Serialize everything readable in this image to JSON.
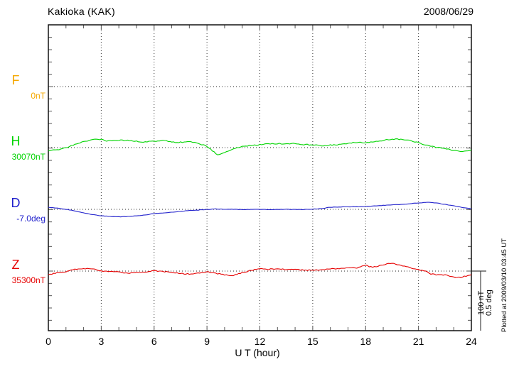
{
  "header": {
    "title": "Kakioka (KAK)",
    "date": "2008/06/29"
  },
  "axis": {
    "xlabel": "U T (hour)",
    "tick_labels": [
      "0",
      "3",
      "6",
      "9",
      "12",
      "15",
      "18",
      "21",
      "24"
    ],
    "tick_hours": [
      0,
      3,
      6,
      9,
      12,
      15,
      18,
      21,
      24
    ]
  },
  "scale_bar": {
    "nt_label": "100 nT",
    "deg_label": "0.5 deg"
  },
  "footer_note": "Plotted at 2009/03/10 03:45 UT",
  "components": [
    {
      "label": "F",
      "sublabel": "0nT",
      "color": "#f5a800"
    },
    {
      "label": "H",
      "sublabel": "30070nT",
      "color": "#00d400"
    },
    {
      "label": "D",
      "sublabel": "-7.0deg",
      "color": "#2222cc"
    },
    {
      "label": "Z",
      "sublabel": "35300nT",
      "color": "#e60000"
    }
  ],
  "chart_data": {
    "type": "line",
    "title": "Kakioka (KAK)",
    "subtitle": "2008/06/29",
    "xlabel": "U T (hour)",
    "x_range_hours": [
      0,
      24
    ],
    "x_major_tick_hours": 3,
    "x_minor_tick_hours": 1,
    "grid": "dotted vertical lines every 3 h; dotted horizontal line at each component baseline",
    "legend_position": "left margin labels",
    "scale": {
      "nT_per_division": 100,
      "deg_per_division": 0.5
    },
    "series": [
      {
        "name": "F",
        "unit": "nT",
        "baseline_value": "0nT",
        "color": "#f5a800",
        "trace_visible": false,
        "values": []
      },
      {
        "name": "H",
        "unit": "nT offset from 30070nT baseline",
        "baseline_value": "30070nT",
        "color": "#00d400",
        "trace_visible": true,
        "values": [
          [
            0,
            -5
          ],
          [
            0.5,
            -3.5
          ],
          [
            1,
            -0.5
          ],
          [
            1.5,
            5
          ],
          [
            2,
            10
          ],
          [
            2.5,
            13
          ],
          [
            3,
            13
          ],
          [
            3.3,
            11
          ],
          [
            4,
            12
          ],
          [
            4.5,
            11.5
          ],
          [
            5,
            10.5
          ],
          [
            5.5,
            9
          ],
          [
            6,
            10.5
          ],
          [
            6.5,
            11.5
          ],
          [
            7,
            9.5
          ],
          [
            7.3,
            8
          ],
          [
            7.6,
            9
          ],
          [
            8,
            10.5
          ],
          [
            8.5,
            7
          ],
          [
            9,
            2
          ],
          [
            9.3,
            -5
          ],
          [
            9.6,
            -11.5
          ],
          [
            9.8,
            -10
          ],
          [
            10,
            -8
          ],
          [
            10.5,
            -2.5
          ],
          [
            11,
            1.5
          ],
          [
            11.5,
            3.5
          ],
          [
            12,
            4.5
          ],
          [
            12.5,
            6
          ],
          [
            13,
            6.5
          ],
          [
            13.5,
            6
          ],
          [
            14,
            6.5
          ],
          [
            14.5,
            5
          ],
          [
            15,
            4.5
          ],
          [
            15.5,
            3
          ],
          [
            16,
            4
          ],
          [
            16.5,
            5
          ],
          [
            17,
            7
          ],
          [
            17.5,
            8.5
          ],
          [
            18,
            8
          ],
          [
            18.5,
            10
          ],
          [
            19,
            11.5
          ],
          [
            19.5,
            14
          ],
          [
            20,
            13.5
          ],
          [
            20.5,
            11.5
          ],
          [
            21,
            8
          ],
          [
            21.5,
            3.5
          ],
          [
            22,
            0.5
          ],
          [
            22.5,
            -1
          ],
          [
            23,
            -5
          ],
          [
            23.5,
            -6
          ],
          [
            24,
            -4
          ]
        ]
      },
      {
        "name": "D",
        "unit": "deg offset from -7.0deg baseline",
        "baseline_value": "-7.0deg",
        "color": "#2222cc",
        "trace_visible": true,
        "values": [
          [
            0,
            0.017
          ],
          [
            0.5,
            0.009
          ],
          [
            1,
            0
          ],
          [
            1.5,
            -0.012
          ],
          [
            2,
            -0.029
          ],
          [
            2.5,
            -0.043
          ],
          [
            3,
            -0.052
          ],
          [
            3.5,
            -0.058
          ],
          [
            4,
            -0.061
          ],
          [
            4.5,
            -0.058
          ],
          [
            5,
            -0.052
          ],
          [
            5.5,
            -0.046
          ],
          [
            6,
            -0.035
          ],
          [
            6.5,
            -0.029
          ],
          [
            7,
            -0.023
          ],
          [
            7.5,
            -0.017
          ],
          [
            8,
            -0.009
          ],
          [
            8.5,
            -0.006
          ],
          [
            9,
            -0.001
          ],
          [
            9.5,
            0.003
          ],
          [
            10,
            0.001
          ],
          [
            10.5,
            0
          ],
          [
            11,
            -0.002
          ],
          [
            11.5,
            -0.001
          ],
          [
            12,
            0
          ],
          [
            12.5,
            -0.002
          ],
          [
            13,
            -0.001
          ],
          [
            13.5,
            0
          ],
          [
            14,
            -0.002
          ],
          [
            14.5,
            -0.001
          ],
          [
            15,
            0.001
          ],
          [
            15.5,
            0.006
          ],
          [
            16,
            0.017
          ],
          [
            16.5,
            0.019
          ],
          [
            17,
            0.02
          ],
          [
            17.5,
            0.021
          ],
          [
            18,
            0.023
          ],
          [
            18.5,
            0.027
          ],
          [
            19,
            0.032
          ],
          [
            19.5,
            0.037
          ],
          [
            20,
            0.04
          ],
          [
            20.5,
            0.046
          ],
          [
            21,
            0.052
          ],
          [
            21.5,
            0.058
          ],
          [
            22,
            0.052
          ],
          [
            22.5,
            0.04
          ],
          [
            23,
            0.029
          ],
          [
            23.5,
            0.014
          ],
          [
            24,
            0.006
          ]
        ]
      },
      {
        "name": "Z",
        "unit": "nT offset from 35300nT baseline",
        "baseline_value": "35300nT",
        "color": "#e60000",
        "trace_visible": true,
        "values": [
          [
            0,
            -6.3
          ],
          [
            0.5,
            -2.3
          ],
          [
            1,
            -0.6
          ],
          [
            1.5,
            2.9
          ],
          [
            2,
            4
          ],
          [
            2.5,
            3.5
          ],
          [
            3,
            0
          ],
          [
            3.5,
            -0.6
          ],
          [
            4,
            -1.2
          ],
          [
            4.5,
            -3.5
          ],
          [
            5,
            -2.3
          ],
          [
            5.5,
            -1.2
          ],
          [
            6,
            0.6
          ],
          [
            6.5,
            -0.6
          ],
          [
            7,
            -2.3
          ],
          [
            7.5,
            -4
          ],
          [
            8,
            -4.6
          ],
          [
            8.5,
            -3.5
          ],
          [
            9,
            -1.7
          ],
          [
            9.5,
            -3.5
          ],
          [
            10,
            -6.3
          ],
          [
            10.5,
            -6.9
          ],
          [
            11,
            -2.3
          ],
          [
            11.5,
            1.2
          ],
          [
            12,
            3.5
          ],
          [
            12.5,
            2.9
          ],
          [
            13,
            4
          ],
          [
            13.5,
            2.9
          ],
          [
            14,
            2.3
          ],
          [
            14.5,
            1.7
          ],
          [
            15,
            1.2
          ],
          [
            15.5,
            2.3
          ],
          [
            16,
            3.5
          ],
          [
            16.5,
            4
          ],
          [
            17,
            4.6
          ],
          [
            17.5,
            5.2
          ],
          [
            18,
            9.2
          ],
          [
            18.4,
            5.8
          ],
          [
            18.7,
            8.1
          ],
          [
            19,
            10.4
          ],
          [
            19.4,
            12.1
          ],
          [
            19.7,
            11.5
          ],
          [
            20,
            9.2
          ],
          [
            20.5,
            5.8
          ],
          [
            21,
            2.3
          ],
          [
            21.4,
            0
          ],
          [
            21.7,
            -4.6
          ],
          [
            22,
            -5.8
          ],
          [
            22.5,
            -6.3
          ],
          [
            23,
            -9.8
          ],
          [
            23.4,
            -10.4
          ],
          [
            23.7,
            -8.1
          ],
          [
            24,
            -5.8
          ]
        ]
      }
    ]
  }
}
